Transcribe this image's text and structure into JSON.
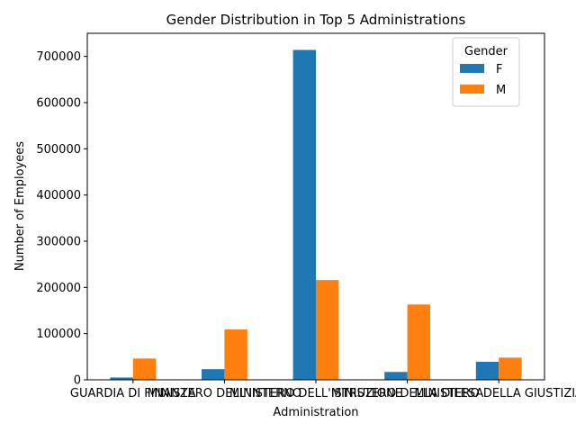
{
  "chart_data": {
    "type": "bar",
    "title": "Gender Distribution in Top 5 Administrations",
    "xlabel": "Administration",
    "ylabel": "Number of Employees",
    "categories": [
      "GUARDIA DI FINANZA",
      "MINISTERO DELL'INTERNO",
      "MINISTERO DELL'ISTRUZIONE",
      "MINISTERO DELLA DIFESA",
      "MINISTERO DELLA GIUSTIZIA"
    ],
    "series": [
      {
        "name": "F",
        "color": "#1f77b4",
        "values": [
          5000,
          23000,
          714000,
          17000,
          39000
        ]
      },
      {
        "name": "M",
        "color": "#ff7f0e",
        "values": [
          46000,
          109000,
          216000,
          163000,
          48000
        ]
      }
    ],
    "ylim": [
      0,
      750000
    ],
    "yticks": [
      0,
      100000,
      200000,
      300000,
      400000,
      500000,
      600000,
      700000
    ],
    "ytick_labels": [
      "0",
      "100000",
      "200000",
      "300000",
      "400000",
      "500000",
      "600000",
      "700000"
    ],
    "legend": {
      "title": "Gender",
      "position": "top-right"
    },
    "grid": false
  }
}
